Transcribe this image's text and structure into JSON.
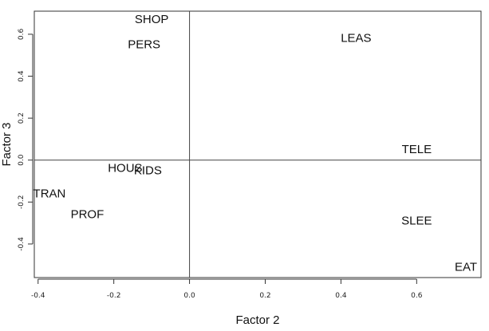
{
  "chart_data": {
    "type": "scatter",
    "xlabel": "Factor 2",
    "ylabel": "Factor 3",
    "xlim": [
      -0.41,
      0.77
    ],
    "ylim": [
      -0.56,
      0.71
    ],
    "x_ticks": [
      -0.4,
      -0.2,
      0.0,
      0.2,
      0.4,
      0.6
    ],
    "x_tick_labels": [
      "-0.4",
      "-0.2",
      "0.0",
      "0.2",
      "0.4",
      "0.6"
    ],
    "y_ticks": [
      -0.4,
      -0.2,
      0.0,
      0.2,
      0.4,
      0.6
    ],
    "y_tick_labels": [
      "-0.4",
      "-0.2",
      "0.0",
      "0.2",
      "0.4",
      "0.6"
    ],
    "reference_lines": {
      "x": 0.0,
      "y": 0.0
    },
    "grid": false,
    "points": [
      {
        "label": "SHOP",
        "x": -0.1,
        "y": 0.67
      },
      {
        "label": "PERS",
        "x": -0.12,
        "y": 0.55
      },
      {
        "label": "LEAS",
        "x": 0.44,
        "y": 0.58
      },
      {
        "label": "TELE",
        "x": 0.6,
        "y": 0.05
      },
      {
        "label": "HOUS",
        "x": -0.17,
        "y": -0.04
      },
      {
        "label": "KIDS",
        "x": -0.11,
        "y": -0.05
      },
      {
        "label": "TRAN",
        "x": -0.37,
        "y": -0.16
      },
      {
        "label": "PROF",
        "x": -0.27,
        "y": -0.26
      },
      {
        "label": "SLEE",
        "x": 0.6,
        "y": -0.29
      },
      {
        "label": "EAT",
        "x": 0.73,
        "y": -0.51
      }
    ]
  }
}
